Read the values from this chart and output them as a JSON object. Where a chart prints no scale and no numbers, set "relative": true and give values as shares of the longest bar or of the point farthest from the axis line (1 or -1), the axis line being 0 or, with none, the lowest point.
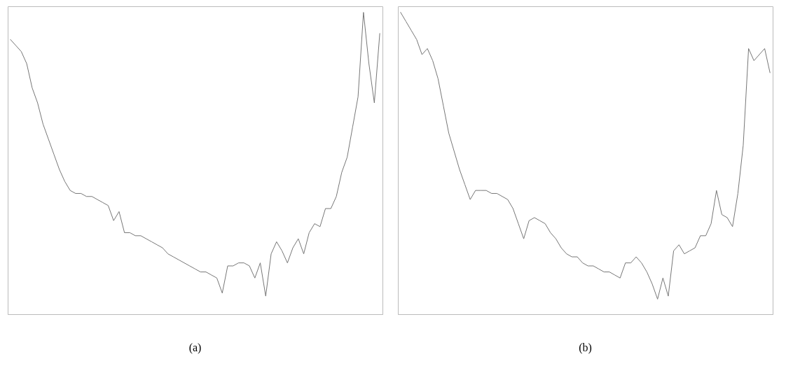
{
  "chart_data": [
    {
      "type": "line",
      "title": "(a)",
      "relative": true,
      "tick_labels": false,
      "categories": [
        null,
        null,
        null,
        null,
        null,
        null,
        null,
        null,
        null,
        null,
        null,
        null,
        null,
        null,
        null,
        null,
        null,
        null,
        null,
        null,
        null,
        null,
        null,
        null,
        null,
        null,
        null,
        null,
        null,
        null,
        null,
        null,
        null,
        null,
        null,
        null,
        null,
        null,
        null,
        null,
        null,
        null,
        null,
        null,
        null,
        null,
        null,
        null,
        null,
        null,
        null,
        null,
        null,
        null,
        null,
        null,
        null,
        null,
        null,
        null,
        null,
        null,
        null,
        null,
        null,
        null,
        null,
        null,
        null
      ],
      "series": [
        {
          "color": "#777777",
          "values": [
            0.91,
            0.89,
            0.87,
            0.83,
            0.75,
            0.7,
            0.63,
            0.58,
            0.53,
            0.48,
            0.44,
            0.41,
            0.4,
            0.4,
            0.39,
            0.39,
            0.38,
            0.37,
            0.36,
            0.31,
            0.34,
            0.27,
            0.27,
            0.26,
            0.26,
            0.25,
            0.24,
            0.23,
            0.22,
            0.2,
            0.19,
            0.18,
            0.17,
            0.16,
            0.15,
            0.14,
            0.14,
            0.13,
            0.12,
            0.07,
            0.16,
            0.16,
            0.17,
            0.17,
            0.16,
            0.12,
            0.17,
            0.06,
            0.2,
            0.24,
            0.21,
            0.17,
            0.22,
            0.25,
            0.2,
            0.27,
            0.3,
            0.29,
            0.35,
            0.35,
            0.39,
            0.47,
            0.52,
            0.62,
            0.72,
            1,
            0.83,
            0.7,
            0.93
          ]
        }
      ]
    },
    {
      "type": "line",
      "title": "(b)",
      "relative": true,
      "tick_labels": false,
      "categories": [
        null,
        null,
        null,
        null,
        null,
        null,
        null,
        null,
        null,
        null,
        null,
        null,
        null,
        null,
        null,
        null,
        null,
        null,
        null,
        null,
        null,
        null,
        null,
        null,
        null,
        null,
        null,
        null,
        null,
        null,
        null,
        null,
        null,
        null,
        null,
        null,
        null,
        null,
        null,
        null,
        null,
        null,
        null,
        null,
        null,
        null,
        null,
        null,
        null,
        null,
        null,
        null,
        null,
        null,
        null,
        null,
        null,
        null,
        null,
        null,
        null,
        null,
        null,
        null,
        null,
        null,
        null,
        null,
        null,
        null
      ],
      "series": [
        {
          "color": "#777777",
          "values": [
            1,
            0.97,
            0.94,
            0.91,
            0.86,
            0.88,
            0.84,
            0.78,
            0.69,
            0.6,
            0.54,
            0.48,
            0.43,
            0.38,
            0.41,
            0.41,
            0.41,
            0.4,
            0.4,
            0.39,
            0.38,
            0.35,
            0.3,
            0.25,
            0.31,
            0.32,
            0.31,
            0.3,
            0.27,
            0.25,
            0.22,
            0.2,
            0.19,
            0.19,
            0.17,
            0.16,
            0.16,
            0.15,
            0.14,
            0.14,
            0.13,
            0.12,
            0.17,
            0.17,
            0.19,
            0.17,
            0.14,
            0.1,
            0.05,
            0.12,
            0.06,
            0.21,
            0.23,
            0.2,
            0.21,
            0.22,
            0.26,
            0.26,
            0.3,
            0.41,
            0.33,
            0.32,
            0.29,
            0.4,
            0.56,
            0.88,
            0.84,
            0.86,
            0.88,
            0.8
          ]
        }
      ]
    }
  ]
}
